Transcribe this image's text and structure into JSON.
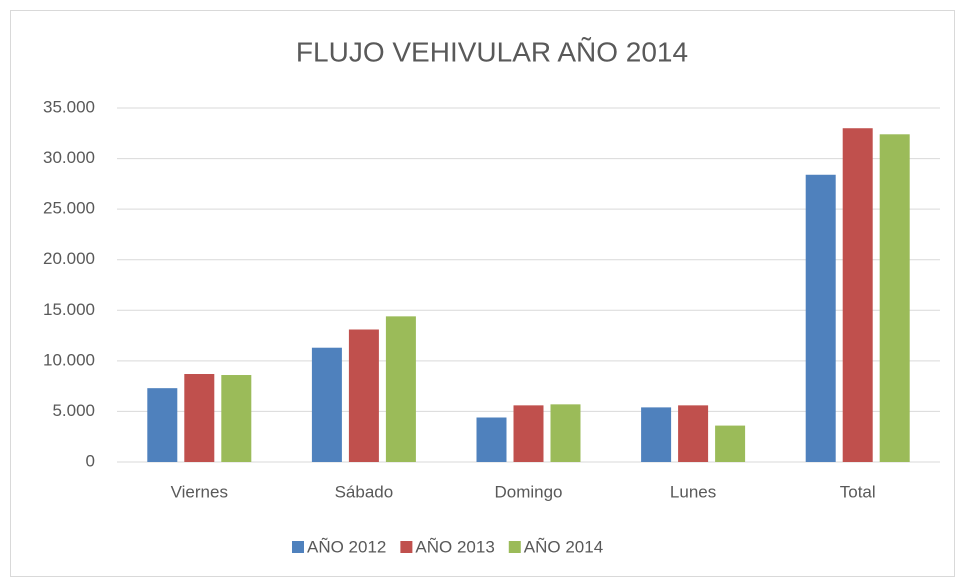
{
  "chart_data": {
    "type": "bar",
    "title": "FLUJO VEHIVULAR AÑO 2014",
    "categories": [
      "Viernes",
      "Sábado",
      "Domingo",
      "Lunes",
      "Total"
    ],
    "series": [
      {
        "name": "AÑO 2012",
        "color": "#4f81bd",
        "values": [
          7300,
          11300,
          4400,
          5400,
          28400
        ]
      },
      {
        "name": "AÑO 2013",
        "color": "#c0504d",
        "values": [
          8700,
          13100,
          5600,
          5600,
          33000
        ]
      },
      {
        "name": "AÑO 2014",
        "color": "#9bbb59",
        "values": [
          8600,
          14400,
          5700,
          3600,
          32400
        ]
      }
    ],
    "ylim": [
      0,
      35000
    ],
    "yticks": [
      0,
      {
        "value": 5000,
        "label": "5.000"
      },
      {
        "value": 10000,
        "label": "10.000"
      },
      {
        "value": 15000,
        "label": "15.000"
      },
      {
        "value": 20000,
        "label": "20.000"
      },
      {
        "value": 25000,
        "label": "25.000"
      },
      {
        "value": 30000,
        "label": "30.000"
      },
      {
        "value": 35000,
        "label": "35.000"
      }
    ],
    "grid": true,
    "legend": "bottom"
  }
}
